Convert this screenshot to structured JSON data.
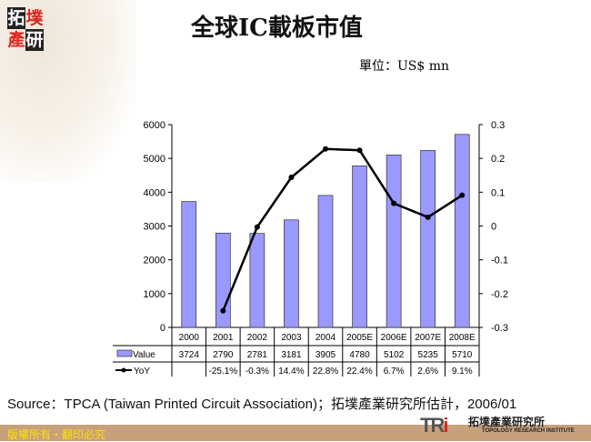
{
  "header": {
    "logo_text": [
      "拓",
      "墣",
      "產",
      "研"
    ],
    "title": "全球IC載板市值",
    "unit": "單位：US$ mn"
  },
  "chart_data": {
    "type": "bar+line",
    "categories": [
      "2000",
      "2001",
      "2002",
      "2003",
      "2004",
      "2005E",
      "2006E",
      "2007E",
      "2008E"
    ],
    "series": [
      {
        "name": "Value",
        "type": "bar",
        "axis": "left",
        "color": "#9999ff",
        "values": [
          3724,
          2790,
          2781,
          3181,
          3905,
          4780,
          5102,
          5235,
          5710
        ]
      },
      {
        "name": "YoY",
        "type": "line",
        "axis": "right",
        "color": "#000000",
        "values": [
          null,
          -0.251,
          -0.003,
          0.144,
          0.228,
          0.224,
          0.067,
          0.026,
          0.091
        ]
      }
    ],
    "left_axis": {
      "ylim": [
        0,
        6000
      ],
      "ticks": [
        "0",
        "1000",
        "2000",
        "3000",
        "4000",
        "5000",
        "6000"
      ]
    },
    "right_axis": {
      "ylim": [
        -0.3,
        0.3
      ],
      "ticks": [
        "-0.3",
        "-0.2",
        "-0.1",
        "0",
        "0.1",
        "0.2",
        "0.3"
      ]
    },
    "grid": false,
    "data_table": {
      "value_row": [
        "3724",
        "2790",
        "2781",
        "3181",
        "3905",
        "4780",
        "5102",
        "5235",
        "5710"
      ],
      "yoy_row": [
        "",
        "-25.1%",
        "-0.3%",
        "14.4%",
        "22.8%",
        "22.4%",
        "6.7%",
        "2.6%",
        "9.1%"
      ]
    }
  },
  "footer": {
    "source": "Source：TPCA (Taiwan Printed Circuit Association)；拓墣產業研究所估計，2006/01",
    "copyright": "版權所有‧翻印必究",
    "tri_logo": "TRi",
    "tri_name": "拓墣產業研究所",
    "tri_sub": "TOPOLOGY RESEARCH INSTITUTE"
  }
}
